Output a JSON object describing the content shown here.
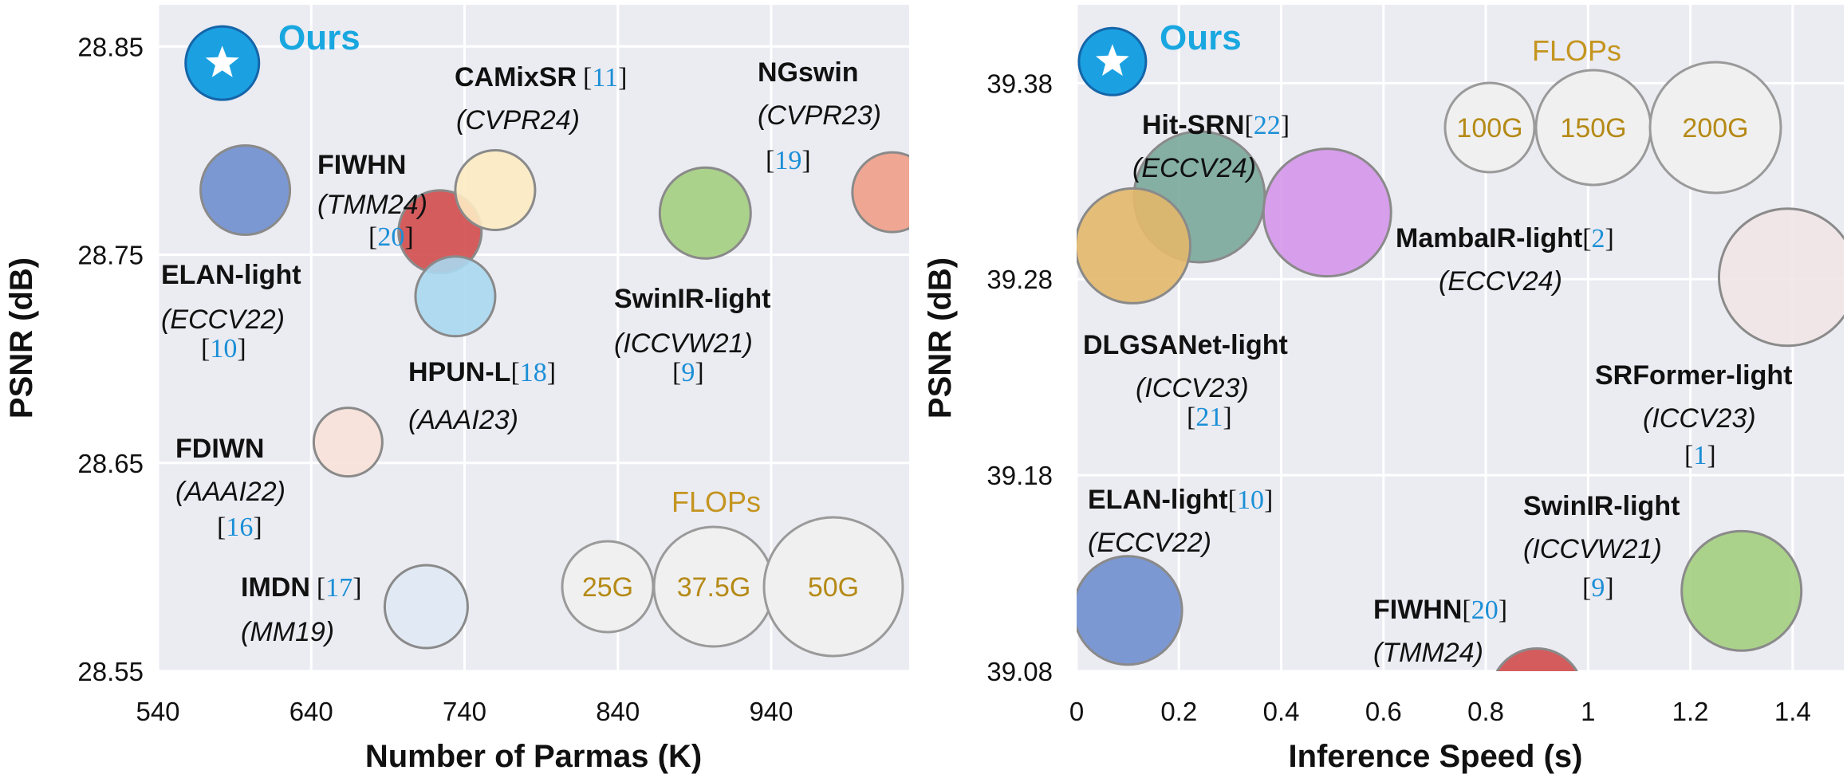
{
  "chart_data": [
    {
      "type": "scatter",
      "xlabel": "Number of Parmas (K)",
      "ylabel": "PSNR (dB)",
      "xlim": [
        540,
        1030
      ],
      "ylim": [
        28.55,
        28.87
      ],
      "xticks": [
        "540",
        "640",
        "740",
        "840",
        "940"
      ],
      "yticks": [
        "28.55",
        "28.65",
        "28.75",
        "28.85"
      ],
      "grid": true,
      "points": [
        {
          "name": "Ours",
          "x": 582,
          "y": 28.842,
          "color": "#1ba1e2",
          "venue": "",
          "ref": ""
        },
        {
          "name": "ELAN-light",
          "x": 597,
          "y": 28.781,
          "color": "#6f8fcf",
          "venue": "ECCV22",
          "ref": "10"
        },
        {
          "name": "FIWHN",
          "x": 724,
          "y": 28.761,
          "color": "#d24d4d",
          "venue": "TMM24",
          "ref": "20"
        },
        {
          "name": "CAMixSR",
          "x": 760,
          "y": 28.781,
          "color": "#fdebc2",
          "venue": "CVPR24",
          "ref": "11"
        },
        {
          "name": "HPUN-L",
          "x": 734,
          "y": 28.73,
          "color": "#a8d8ef",
          "venue": "AAAI23",
          "ref": "18"
        },
        {
          "name": "SwinIR-light",
          "x": 897,
          "y": 28.77,
          "color": "#a4cf80",
          "venue": "ICCVW21",
          "ref": "9"
        },
        {
          "name": "NGswin",
          "x": 1019,
          "y": 28.78,
          "color": "#f0a088",
          "venue": "CVPR23",
          "ref": "19"
        },
        {
          "name": "FDIWN",
          "x": 664,
          "y": 28.66,
          "color": "#f8e2d8",
          "venue": "AAAI22",
          "ref": "16"
        },
        {
          "name": "IMDN",
          "x": 715,
          "y": 28.581,
          "color": "#e0eaf4",
          "venue": "MM19",
          "ref": "17"
        }
      ],
      "size_legend": {
        "title": "FLOPs",
        "labels": [
          "25G",
          "37.5G",
          "50G"
        ]
      }
    },
    {
      "type": "scatter",
      "xlabel": "Inference Speed (s)",
      "ylabel": "PSNR (dB)",
      "xlim": [
        0,
        1.5
      ],
      "ylim": [
        39.08,
        39.42
      ],
      "xticks": [
        "0",
        "0.2",
        "0.4",
        "0.6",
        "0.8",
        "1",
        "1.2",
        "1.4"
      ],
      "yticks": [
        "39.08",
        "39.18",
        "39.28",
        "39.38"
      ],
      "grid": true,
      "points": [
        {
          "name": "Ours",
          "x": 0.07,
          "y": 39.391,
          "color": "#1ba1e2",
          "venue": "",
          "ref": ""
        },
        {
          "name": "Hit-SRN",
          "x": 0.24,
          "y": 39.322,
          "color": "#7aa89a",
          "venue": "ECCV24",
          "ref": "22"
        },
        {
          "name": "MambaIR-light",
          "x": 0.49,
          "y": 39.314,
          "color": "#d596ea",
          "venue": "ECCV24",
          "ref": "2"
        },
        {
          "name": "DLGSANet-light",
          "x": 0.11,
          "y": 39.297,
          "color": "#e3b86a",
          "venue": "ICCV23",
          "ref": "21"
        },
        {
          "name": "SRFormer-light",
          "x": 1.39,
          "y": 39.281,
          "color": "#f1e6e6",
          "venue": "ICCV23",
          "ref": "1"
        },
        {
          "name": "ELAN-light",
          "x": 0.1,
          "y": 39.111,
          "color": "#6f8fcf",
          "venue": "ECCV22",
          "ref": "10"
        },
        {
          "name": "SwinIR-light",
          "x": 1.3,
          "y": 39.121,
          "color": "#a4cf80",
          "venue": "ICCVW21",
          "ref": "9"
        },
        {
          "name": "FIWHN",
          "x": 0.9,
          "y": 39.068,
          "color": "#d24d4d",
          "venue": "TMM24",
          "ref": "20"
        }
      ],
      "size_legend": {
        "title": "FLOPs",
        "labels": [
          "100G",
          "150G",
          "200G"
        ]
      }
    }
  ]
}
